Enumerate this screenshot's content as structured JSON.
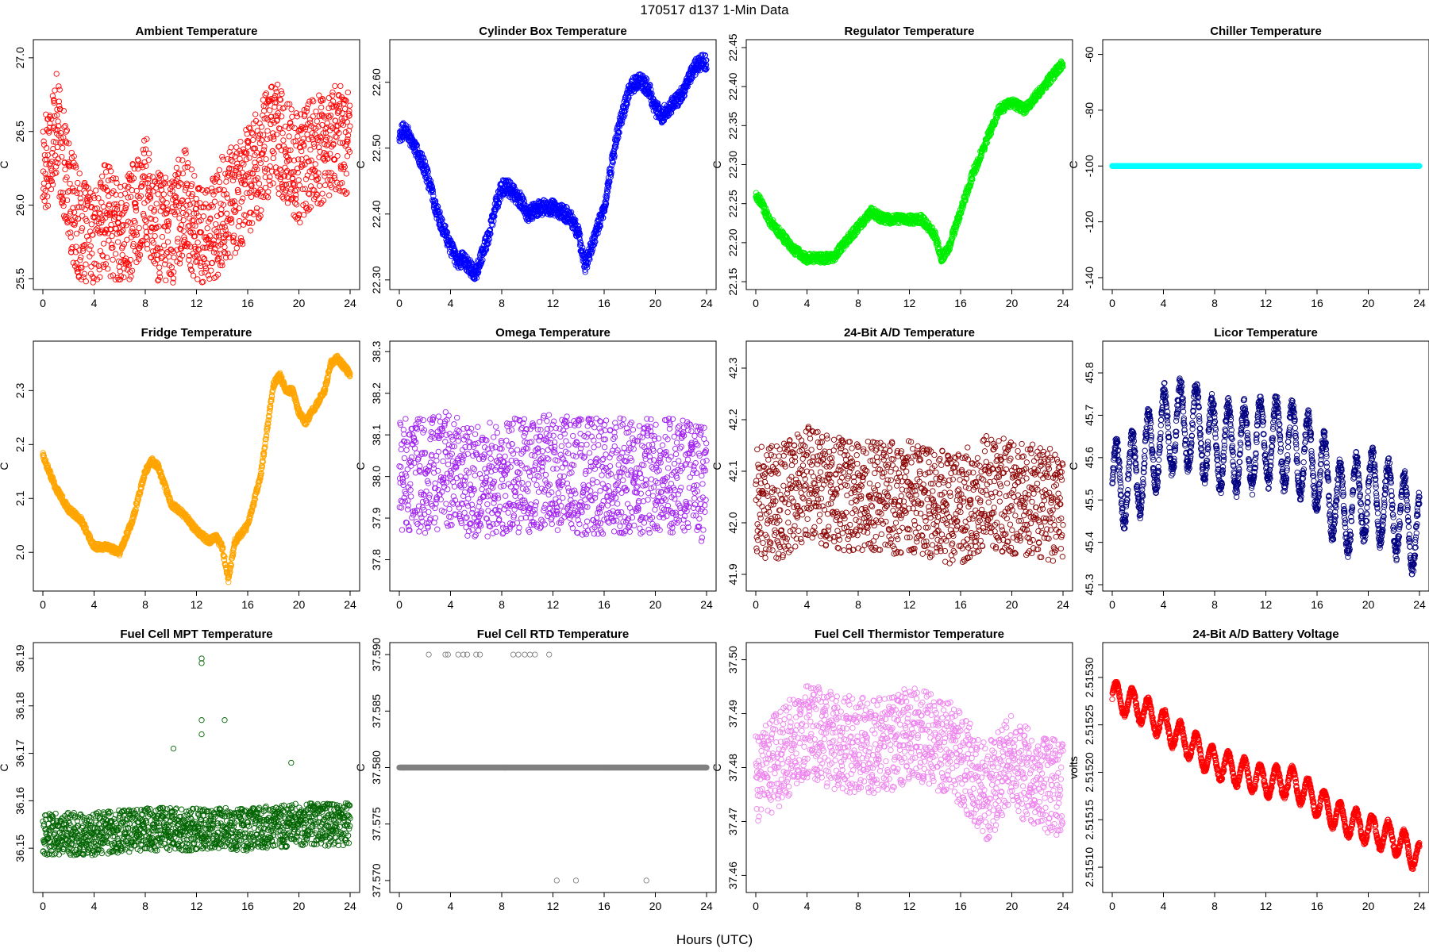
{
  "figure": {
    "title": "170517   d137   1-Min Data",
    "xlabel": "Hours (UTC)"
  },
  "chart_data": [
    {
      "id": "ambient",
      "type": "scatter",
      "title": "Ambient Temperature",
      "ylabel": "C",
      "color": "#ff0000",
      "xlim": [
        0,
        24
      ],
      "ylim": [
        25.47,
        27.08
      ],
      "xticks": [
        0,
        4,
        8,
        12,
        16,
        20,
        24
      ],
      "yticks": [
        25.5,
        26.0,
        26.5,
        27.0
      ],
      "yfmt": 1,
      "x": [
        0,
        1,
        2,
        3,
        4,
        5,
        6,
        7,
        8,
        9,
        10,
        11,
        12,
        13,
        14,
        15,
        16,
        17,
        18,
        19,
        20,
        21,
        22,
        23,
        24
      ],
      "y": [
        26.25,
        26.55,
        26.1,
        25.8,
        25.7,
        25.95,
        25.75,
        25.9,
        26.1,
        25.85,
        25.8,
        26.05,
        25.8,
        25.75,
        25.95,
        26.05,
        26.15,
        26.3,
        26.5,
        26.35,
        26.25,
        26.35,
        26.4,
        26.45,
        26.45
      ],
      "spread": 0.38,
      "density": 60,
      "pattern": "noise"
    },
    {
      "id": "cylinder",
      "type": "scatter",
      "title": "Cylinder Box Temperature",
      "ylabel": "C",
      "color": "#0000ff",
      "xlim": [
        0,
        24
      ],
      "ylim": [
        22.295,
        22.655
      ],
      "xticks": [
        0,
        4,
        8,
        12,
        16,
        20,
        24
      ],
      "yticks": [
        22.3,
        22.4,
        22.5,
        22.6
      ],
      "yfmt": 2,
      "x": [
        0,
        0.5,
        1,
        2,
        3,
        4,
        4.5,
        5,
        5.5,
        6,
        7,
        7.5,
        8,
        8.5,
        9,
        9.5,
        10,
        11,
        12,
        13,
        13.5,
        14,
        14.5,
        15,
        16,
        17,
        18,
        18.5,
        19,
        19.5,
        20,
        20.5,
        21,
        22,
        23,
        23.5,
        24
      ],
      "y": [
        22.52,
        22.53,
        22.51,
        22.47,
        22.4,
        22.35,
        22.33,
        22.33,
        22.32,
        22.31,
        22.37,
        22.41,
        22.44,
        22.44,
        22.43,
        22.42,
        22.4,
        22.41,
        22.41,
        22.4,
        22.39,
        22.37,
        22.32,
        22.35,
        22.41,
        22.52,
        22.59,
        22.6,
        22.6,
        22.59,
        22.56,
        22.55,
        22.56,
        22.58,
        22.62,
        22.63,
        22.63
      ],
      "spread": 0.012,
      "density": 65,
      "pattern": "smooth"
    },
    {
      "id": "regulator",
      "type": "scatter",
      "title": "Regulator Temperature",
      "ylabel": "C",
      "color": "#00ee00",
      "xlim": [
        0,
        24
      ],
      "ylim": [
        22.148,
        22.452
      ],
      "xticks": [
        0,
        4,
        8,
        12,
        16,
        20,
        24
      ],
      "yticks": [
        22.15,
        22.2,
        22.25,
        22.3,
        22.35,
        22.4,
        22.45
      ],
      "yfmt": 2,
      "x": [
        0,
        0.5,
        1,
        2,
        3,
        4,
        5,
        6,
        7,
        8,
        9,
        10,
        11,
        12,
        13,
        14,
        14.5,
        15,
        16,
        17,
        18,
        19,
        20,
        21,
        22,
        23,
        24
      ],
      "y": [
        22.26,
        22.25,
        22.23,
        22.21,
        22.19,
        22.18,
        22.18,
        22.18,
        22.2,
        22.22,
        22.24,
        22.23,
        22.23,
        22.23,
        22.23,
        22.21,
        22.18,
        22.19,
        22.24,
        22.29,
        22.33,
        22.37,
        22.38,
        22.37,
        22.39,
        22.41,
        22.43
      ],
      "spread": 0.006,
      "density": 60,
      "pattern": "smooth"
    },
    {
      "id": "chiller",
      "type": "scatter",
      "title": "Chiller Temperature",
      "ylabel": "C",
      "color": "#00ffff",
      "xlim": [
        0,
        24
      ],
      "ylim": [
        -142,
        -57
      ],
      "xticks": [
        0,
        4,
        8,
        12,
        16,
        20,
        24
      ],
      "yticks": [
        -140,
        -120,
        -100,
        -80,
        -60
      ],
      "yfmt": 0,
      "x": [
        0,
        24
      ],
      "y": [
        -100,
        -100
      ],
      "spread": 0,
      "density": 70,
      "pattern": "flat"
    },
    {
      "id": "fridge",
      "type": "scatter",
      "title": "Fridge Temperature",
      "ylabel": "C",
      "color": "#ffa500",
      "xlim": [
        0,
        24
      ],
      "ylim": [
        1.94,
        2.38
      ],
      "xticks": [
        0,
        4,
        8,
        12,
        16,
        20,
        24
      ],
      "yticks": [
        2.0,
        2.1,
        2.2,
        2.3
      ],
      "yfmt": 1,
      "x": [
        0,
        0.5,
        1,
        2,
        3,
        4,
        5,
        6,
        7,
        8,
        8.5,
        9,
        10,
        11,
        12,
        13,
        13.5,
        14,
        14.5,
        15,
        16,
        17,
        18,
        18.5,
        19,
        19.5,
        20,
        20.5,
        21,
        22,
        22.5,
        23,
        24
      ],
      "y": [
        2.18,
        2.15,
        2.12,
        2.08,
        2.06,
        2.01,
        2.01,
        2.0,
        2.06,
        2.15,
        2.17,
        2.16,
        2.09,
        2.07,
        2.04,
        2.02,
        2.03,
        2.01,
        1.95,
        2.02,
        2.05,
        2.14,
        2.31,
        2.33,
        2.3,
        2.3,
        2.26,
        2.24,
        2.26,
        2.3,
        2.35,
        2.36,
        2.33
      ],
      "spread": 0.006,
      "density": 60,
      "pattern": "smooth"
    },
    {
      "id": "omega",
      "type": "scatter",
      "title": "Omega Temperature",
      "ylabel": "C",
      "color": "#a020f0",
      "xlim": [
        0,
        24
      ],
      "ylim": [
        37.74,
        38.31
      ],
      "xticks": [
        0,
        4,
        8,
        12,
        16,
        20,
        24
      ],
      "yticks": [
        37.8,
        37.9,
        38.0,
        38.1,
        38.2,
        38.3
      ],
      "yfmt": 1,
      "x": [
        0,
        2,
        4,
        6,
        8,
        10,
        12,
        14,
        16,
        18,
        20,
        22,
        24
      ],
      "y": [
        38.0,
        38.0,
        38.02,
        37.98,
        38.0,
        38.0,
        38.01,
        38.0,
        38.0,
        38.0,
        38.0,
        38.0,
        37.98
      ],
      "spread": 0.14,
      "density": 55,
      "pattern": "noise"
    },
    {
      "id": "ad24",
      "type": "scatter",
      "title": "24-Bit A/D Temperature",
      "ylabel": "C",
      "color": "#8b0000",
      "xlim": [
        0,
        24
      ],
      "ylim": [
        41.88,
        42.34
      ],
      "xticks": [
        0,
        4,
        8,
        12,
        16,
        20,
        24
      ],
      "yticks": [
        41.9,
        42.0,
        42.1,
        42.2,
        42.3
      ],
      "yfmt": 1,
      "x": [
        0,
        2,
        4,
        6,
        8,
        10,
        12,
        14,
        16,
        18,
        20,
        22,
        24
      ],
      "y": [
        42.04,
        42.04,
        42.08,
        42.06,
        42.05,
        42.05,
        42.05,
        42.03,
        42.03,
        42.06,
        42.05,
        42.04,
        42.03
      ],
      "spread": 0.11,
      "density": 55,
      "pattern": "noise"
    },
    {
      "id": "licor",
      "type": "scatter",
      "title": "Licor Temperature",
      "ylabel": "C",
      "color": "#000080",
      "xlim": [
        0,
        24
      ],
      "ylim": [
        45.3,
        45.86
      ],
      "xticks": [
        0,
        4,
        8,
        12,
        16,
        20,
        24
      ],
      "yticks": [
        45.3,
        45.4,
        45.5,
        45.6,
        45.7,
        45.8
      ],
      "yfmt": 1,
      "x": [
        0,
        2,
        4,
        6,
        8,
        10,
        12,
        14,
        16,
        18,
        20,
        22,
        24
      ],
      "y": [
        45.53,
        45.56,
        45.66,
        45.68,
        45.63,
        45.62,
        45.64,
        45.63,
        45.58,
        45.47,
        45.52,
        45.48,
        45.42
      ],
      "spread": 0.13,
      "density": 70,
      "pattern": "wave"
    },
    {
      "id": "fcmpt",
      "type": "scatter",
      "title": "Fuel Cell MPT Temperature",
      "ylabel": "C",
      "color": "#006400",
      "xlim": [
        0,
        24
      ],
      "ylim": [
        36.142,
        36.192
      ],
      "xticks": [
        0,
        4,
        8,
        12,
        16,
        20,
        24
      ],
      "yticks": [
        36.15,
        36.16,
        36.17,
        36.18,
        36.19
      ],
      "yfmt": 2,
      "x": [
        0,
        4,
        8,
        12,
        16,
        20,
        24
      ],
      "y": [
        36.153,
        36.153,
        36.154,
        36.154,
        36.154,
        36.155,
        36.155
      ],
      "spread": 0.0045,
      "density": 60,
      "pattern": "noise",
      "outliers": [
        [
          12.4,
          36.19
        ],
        [
          12.4,
          36.189
        ],
        [
          12.4,
          36.177
        ],
        [
          12.4,
          36.174
        ],
        [
          14.2,
          36.177
        ],
        [
          10.2,
          36.171
        ],
        [
          19.4,
          36.168
        ]
      ]
    },
    {
      "id": "fcrtd",
      "type": "scatter",
      "title": "Fuel Cell RTD Temperature",
      "ylabel": "C",
      "color": "#808080",
      "xlim": [
        0,
        24
      ],
      "ylim": [
        37.5695,
        37.5905
      ],
      "xticks": [
        0,
        4,
        8,
        12,
        16,
        20,
        24
      ],
      "yticks": [
        37.57,
        37.575,
        37.58,
        37.585,
        37.59
      ],
      "yfmt": 3,
      "x": [
        0,
        24
      ],
      "y": [
        37.58,
        37.58
      ],
      "spread": 0,
      "density": 70,
      "pattern": "flat",
      "outliers": [
        [
          2.3,
          37.59
        ],
        [
          3.6,
          37.59
        ],
        [
          3.8,
          37.59
        ],
        [
          4.6,
          37.59
        ],
        [
          5.0,
          37.59
        ],
        [
          5.3,
          37.59
        ],
        [
          6.0,
          37.59
        ],
        [
          6.3,
          37.59
        ],
        [
          8.9,
          37.59
        ],
        [
          9.3,
          37.59
        ],
        [
          9.8,
          37.59
        ],
        [
          10.2,
          37.59
        ],
        [
          10.6,
          37.59
        ],
        [
          11.7,
          37.59
        ],
        [
          12.3,
          37.57
        ],
        [
          13.8,
          37.57
        ],
        [
          19.3,
          37.57
        ]
      ]
    },
    {
      "id": "fcthermistor",
      "type": "scatter",
      "title": "Fuel Cell Thermistor Temperature",
      "ylabel": "C",
      "color": "#ee82ee",
      "xlim": [
        0,
        24
      ],
      "ylim": [
        37.458,
        37.502
      ],
      "xticks": [
        0,
        4,
        8,
        12,
        16,
        20,
        24
      ],
      "yticks": [
        37.46,
        37.47,
        37.48,
        37.49,
        37.5
      ],
      "yfmt": 2,
      "x": [
        0,
        2,
        4,
        6,
        8,
        10,
        12,
        14,
        16,
        18,
        20,
        22,
        24
      ],
      "y": [
        37.478,
        37.482,
        37.487,
        37.485,
        37.484,
        37.484,
        37.486,
        37.485,
        37.482,
        37.475,
        37.481,
        37.477,
        37.476
      ],
      "spread": 0.009,
      "density": 55,
      "pattern": "noise"
    },
    {
      "id": "battery",
      "type": "scatter",
      "title": "24-Bit A/D Battery Voltage",
      "ylabel": "volts",
      "color": "#ff0000",
      "xlim": [
        0,
        24
      ],
      "ylim": [
        2.51508,
        2.51533
      ],
      "xticks": [
        0,
        4,
        8,
        12,
        16,
        20,
        24
      ],
      "yticks": [
        2.5151,
        2.51515,
        2.5152,
        2.51525,
        2.5153
      ],
      "yfmt": 5,
      "x": [
        0,
        2,
        4,
        6,
        8,
        10,
        12,
        14,
        16,
        18,
        20,
        22,
        24
      ],
      "y": [
        2.51528,
        2.51527,
        2.51525,
        2.51523,
        2.51521,
        2.5152,
        2.51519,
        2.51519,
        2.51517,
        2.51515,
        2.51514,
        2.51513,
        2.51511
      ],
      "spread": 2e-05,
      "density": 70,
      "pattern": "wave"
    }
  ]
}
